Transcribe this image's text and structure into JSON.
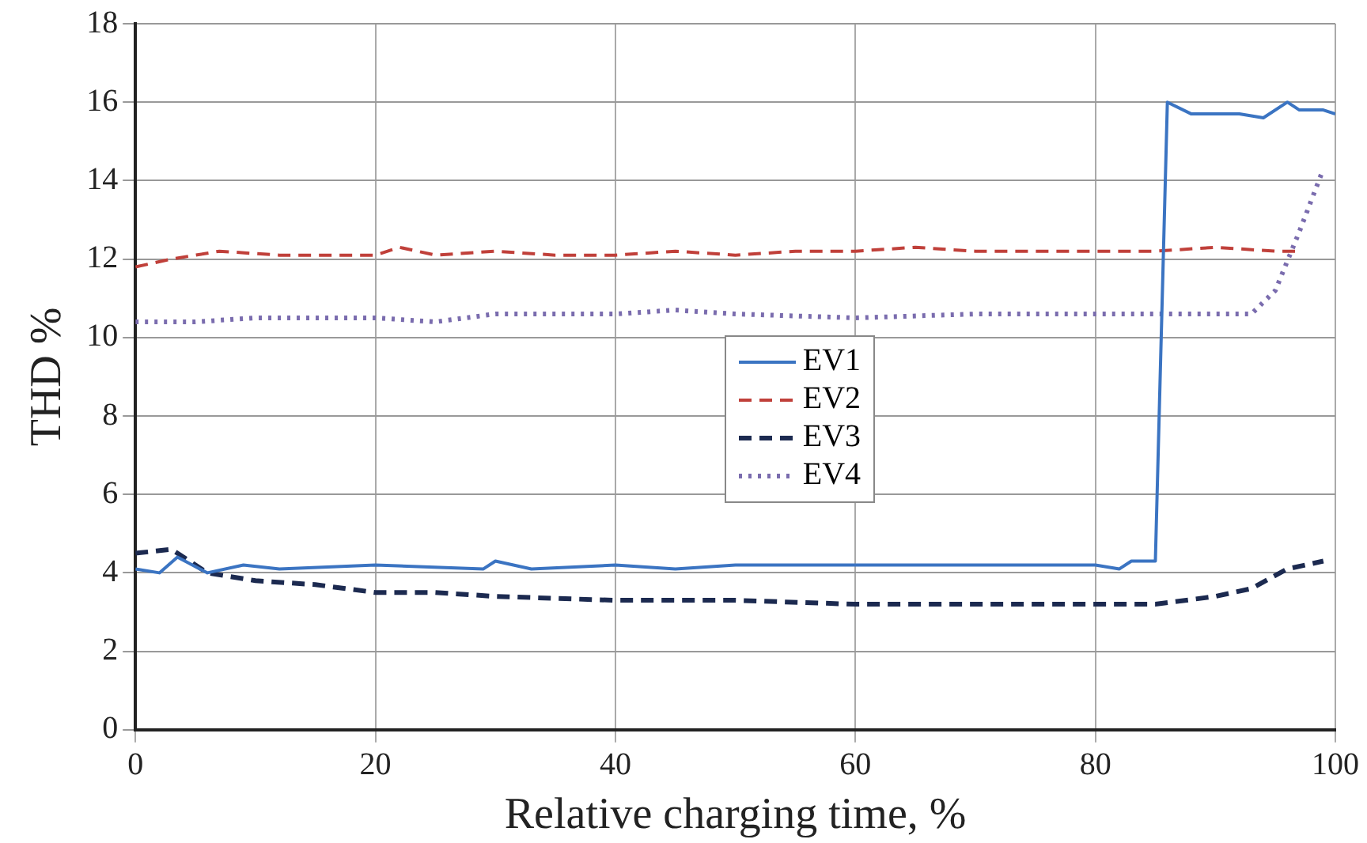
{
  "chart_data": {
    "type": "line",
    "xlabel": "Relative charging time, %",
    "ylabel": "THD %",
    "xlim": [
      0,
      100
    ],
    "xticks": [
      0,
      20,
      40,
      60,
      80,
      100
    ],
    "ylim": [
      0,
      18
    ],
    "yticks": [
      0,
      2,
      4,
      6,
      8,
      10,
      12,
      14,
      16,
      18
    ],
    "grid": true,
    "legend": "center",
    "marker": "none",
    "series": [
      {
        "name": "EV1",
        "color": "#3b74c2",
        "line_style": "solid",
        "x": [
          0,
          2,
          3.5,
          6,
          9,
          12,
          20,
          29,
          30,
          33,
          40,
          45,
          50,
          60,
          70,
          75,
          80,
          82,
          83,
          85,
          86,
          88,
          92,
          94,
          96,
          97,
          99,
          100
        ],
        "values": [
          4.1,
          4,
          4.4,
          4,
          4.2,
          4.1,
          4.2,
          4.1,
          4.3,
          4.1,
          4.2,
          4.1,
          4.2,
          4.2,
          4.2,
          4.2,
          4.2,
          4.1,
          4.3,
          4.3,
          16,
          15.7,
          15.7,
          15.6,
          16,
          15.8,
          15.8,
          15.7
        ]
      },
      {
        "name": "EV2",
        "color": "#c0403a",
        "line_style": "dashed",
        "x": [
          0,
          3,
          7,
          12,
          20,
          22,
          25,
          30,
          35,
          40,
          45,
          50,
          55,
          60,
          65,
          70,
          75,
          80,
          85,
          90,
          95,
          97
        ],
        "values": [
          11.8,
          12,
          12.2,
          12.1,
          12.1,
          12.3,
          12.1,
          12.2,
          12.1,
          12.1,
          12.2,
          12.1,
          12.2,
          12.2,
          12.3,
          12.2,
          12.2,
          12.2,
          12.2,
          12.3,
          12.2,
          12.2
        ]
      },
      {
        "name": "EV3",
        "color": "#1c2a50",
        "line_style": "dashed",
        "x": [
          0,
          3,
          6,
          10,
          15,
          20,
          25,
          30,
          40,
          50,
          60,
          70,
          80,
          85,
          90,
          93,
          96,
          99
        ],
        "values": [
          4.5,
          4.6,
          4,
          3.8,
          3.7,
          3.5,
          3.5,
          3.4,
          3.3,
          3.3,
          3.2,
          3.2,
          3.2,
          3.2,
          3.4,
          3.6,
          4.1,
          4.3
        ]
      },
      {
        "name": "EV4",
        "color": "#7a6cae",
        "line_style": "dotted",
        "x": [
          0,
          5,
          10,
          20,
          25,
          30,
          40,
          45,
          50,
          60,
          70,
          80,
          90,
          93,
          95,
          97,
          99
        ],
        "values": [
          10.4,
          10.4,
          10.5,
          10.5,
          10.4,
          10.6,
          10.6,
          10.7,
          10.6,
          10.5,
          10.6,
          10.6,
          10.6,
          10.6,
          11.2,
          12.7,
          14.3
        ]
      }
    ]
  }
}
